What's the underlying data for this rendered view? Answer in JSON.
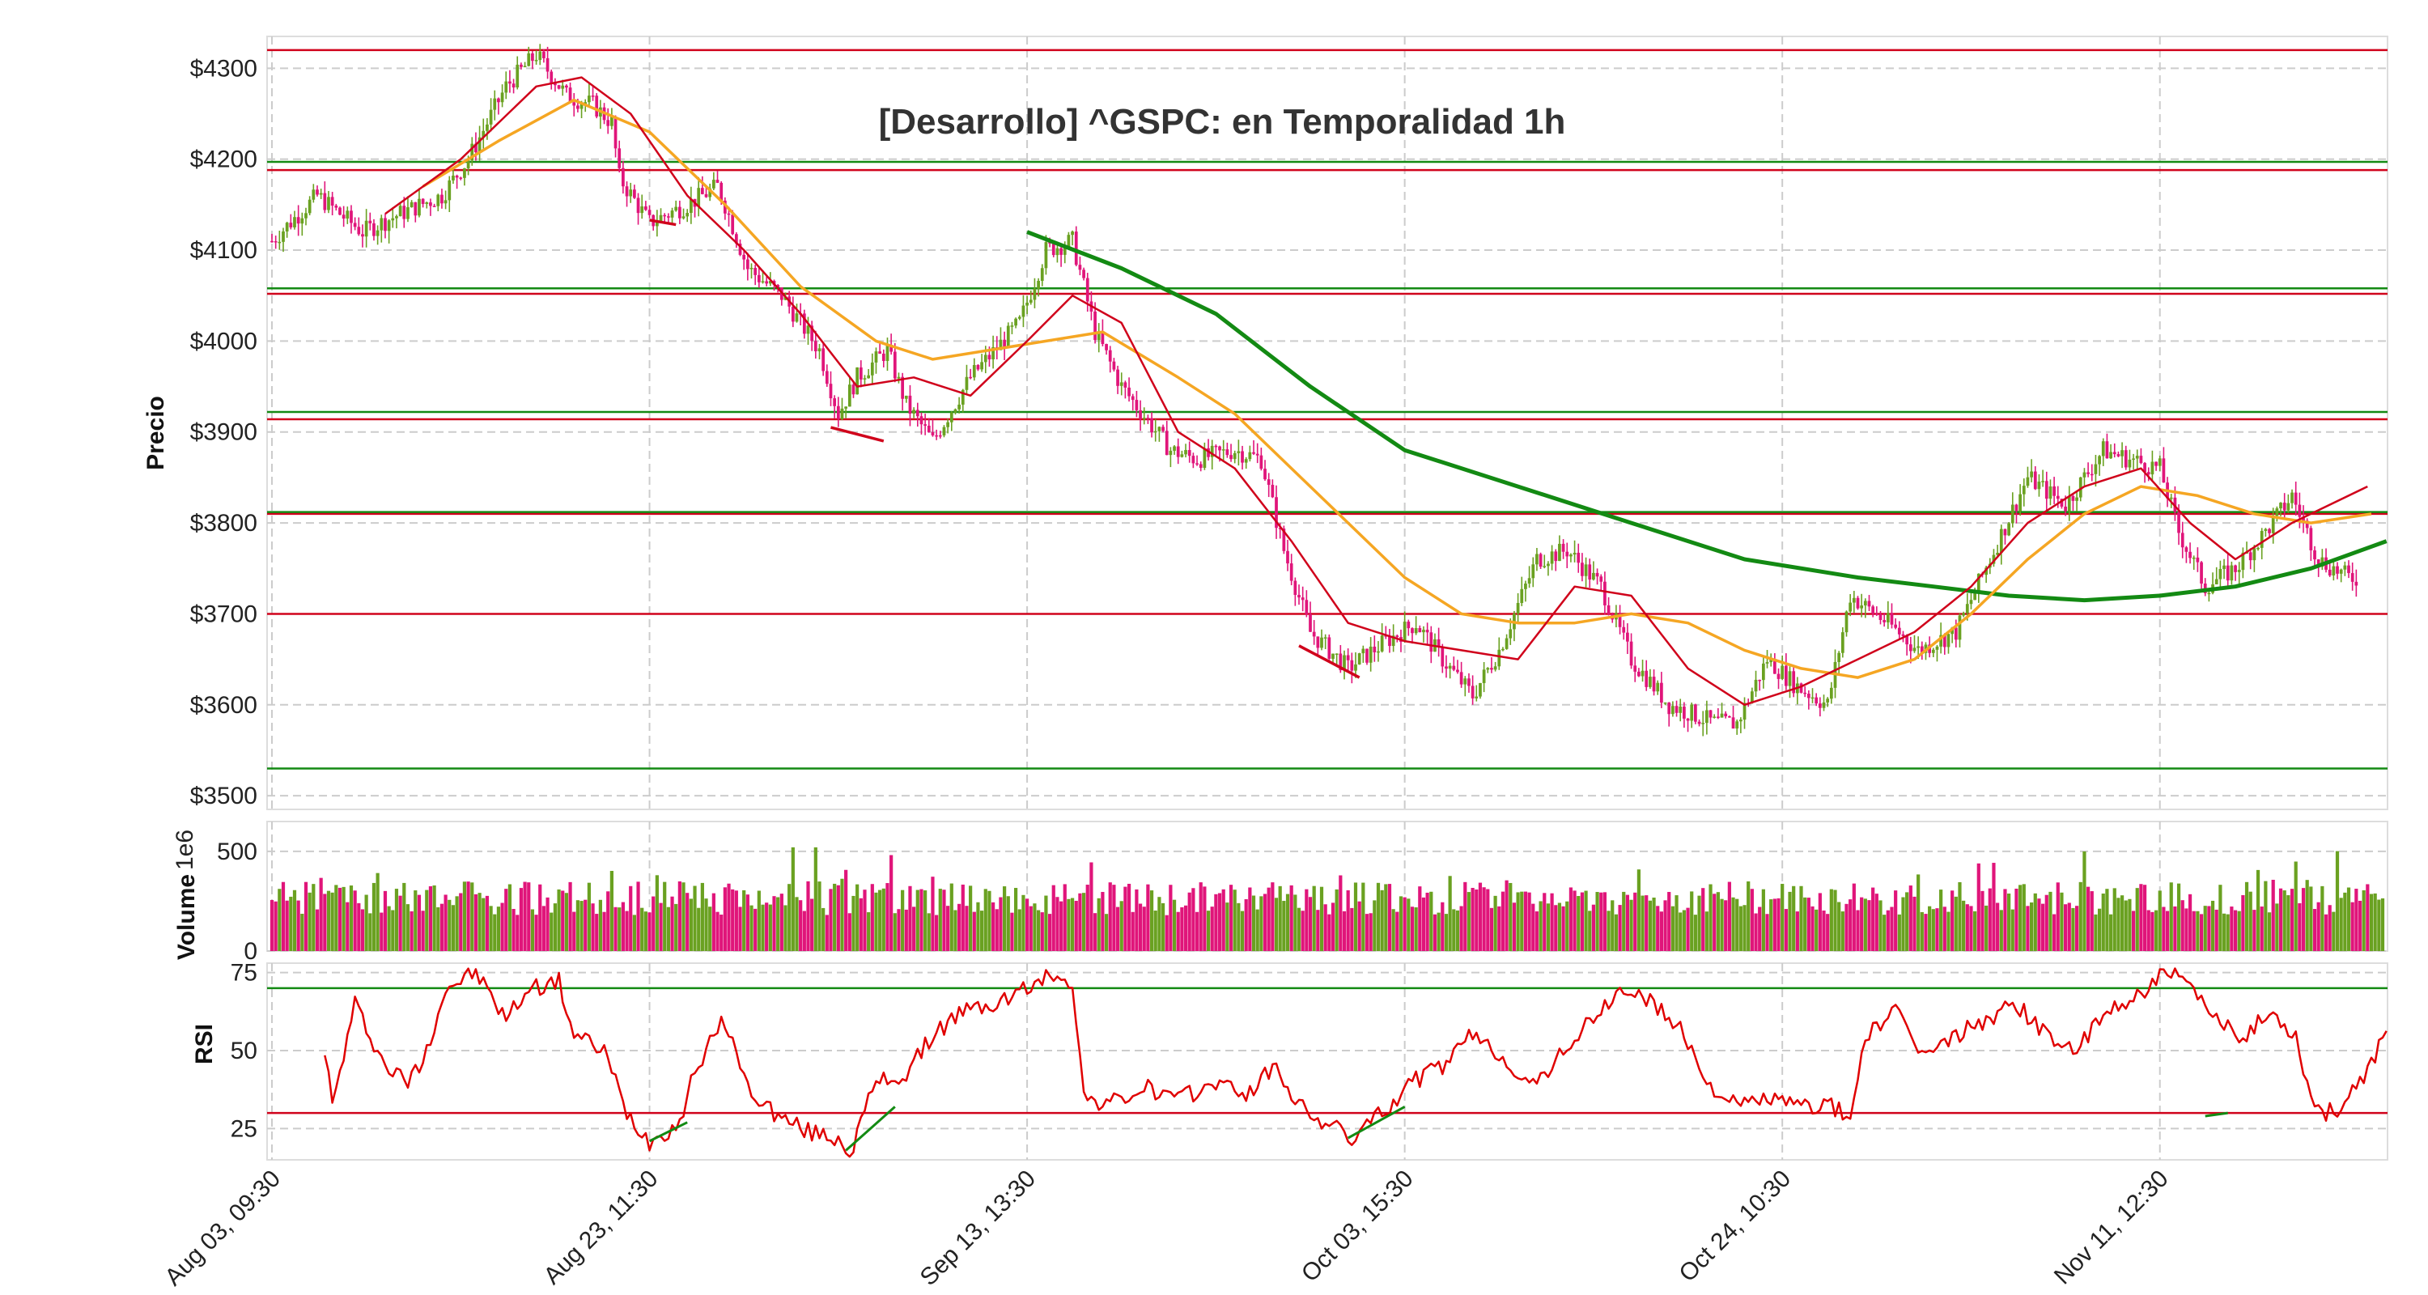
{
  "chart_data": {
    "type": "candlestick",
    "title": "[Desarrollo] ^GSPC: en Temporalidad 1h",
    "colors": {
      "up": "#6aa121",
      "down": "#e0157a",
      "ma_fast": "#d0021b",
      "ma_slow": "#f5a623",
      "ma_long": "#138a13",
      "resistance": "#d0021b",
      "support": "#138a13",
      "rsi": "#e00000",
      "grid": "#cccccc"
    },
    "x_tick_labels": [
      "Aug 03, 09:30",
      "Aug 23, 11:30",
      "Sep 13, 13:30",
      "Oct 03, 15:30",
      "Oct 24, 10:30",
      "Nov 11, 12:30"
    ],
    "n_bars": 560,
    "price_panel": {
      "ylabel": "Precio",
      "ylim": [
        3485,
        4335
      ],
      "tick_values": [
        3500,
        3600,
        3700,
        3800,
        3900,
        4000,
        4100,
        4200,
        4300
      ],
      "tick_labels": [
        "$3500",
        "$3600",
        "$3700",
        "$3800",
        "$3900",
        "$4000",
        "$4100",
        "$4200",
        "$4300"
      ],
      "close_path": [
        {
          "i": 0,
          "v": 4110
        },
        {
          "i": 12,
          "v": 4160
        },
        {
          "i": 24,
          "v": 4120
        },
        {
          "i": 34,
          "v": 4140
        },
        {
          "i": 45,
          "v": 4160
        },
        {
          "i": 52,
          "v": 4200
        },
        {
          "i": 62,
          "v": 4280
        },
        {
          "i": 70,
          "v": 4315
        },
        {
          "i": 78,
          "v": 4270
        },
        {
          "i": 85,
          "v": 4260
        },
        {
          "i": 90,
          "v": 4240
        },
        {
          "i": 92,
          "v": 4180
        },
        {
          "i": 100,
          "v": 4130
        },
        {
          "i": 110,
          "v": 4150
        },
        {
          "i": 118,
          "v": 4170
        },
        {
          "i": 120,
          "v": 4150
        },
        {
          "i": 126,
          "v": 4080
        },
        {
          "i": 135,
          "v": 4050
        },
        {
          "i": 145,
          "v": 3990
        },
        {
          "i": 150,
          "v": 3920
        },
        {
          "i": 155,
          "v": 3960
        },
        {
          "i": 163,
          "v": 3990
        },
        {
          "i": 168,
          "v": 3930
        },
        {
          "i": 175,
          "v": 3890
        },
        {
          "i": 185,
          "v": 3960
        },
        {
          "i": 198,
          "v": 4020
        },
        {
          "i": 205,
          "v": 4100
        },
        {
          "i": 212,
          "v": 4110
        },
        {
          "i": 218,
          "v": 4010
        },
        {
          "i": 225,
          "v": 3950
        },
        {
          "i": 238,
          "v": 3880
        },
        {
          "i": 245,
          "v": 3870
        },
        {
          "i": 255,
          "v": 3880
        },
        {
          "i": 262,
          "v": 3870
        },
        {
          "i": 268,
          "v": 3770
        },
        {
          "i": 275,
          "v": 3680
        },
        {
          "i": 285,
          "v": 3640
        },
        {
          "i": 295,
          "v": 3670
        },
        {
          "i": 303,
          "v": 3690
        },
        {
          "i": 310,
          "v": 3650
        },
        {
          "i": 318,
          "v": 3610
        },
        {
          "i": 325,
          "v": 3660
        },
        {
          "i": 335,
          "v": 3760
        },
        {
          "i": 343,
          "v": 3770
        },
        {
          "i": 352,
          "v": 3730
        },
        {
          "i": 360,
          "v": 3650
        },
        {
          "i": 370,
          "v": 3600
        },
        {
          "i": 382,
          "v": 3580
        },
        {
          "i": 388,
          "v": 3580
        },
        {
          "i": 396,
          "v": 3650
        },
        {
          "i": 404,
          "v": 3620
        },
        {
          "i": 412,
          "v": 3600
        },
        {
          "i": 418,
          "v": 3720
        },
        {
          "i": 428,
          "v": 3690
        },
        {
          "i": 436,
          "v": 3660
        },
        {
          "i": 446,
          "v": 3680
        },
        {
          "i": 455,
          "v": 3760
        },
        {
          "i": 465,
          "v": 3850
        },
        {
          "i": 475,
          "v": 3820
        },
        {
          "i": 485,
          "v": 3880
        },
        {
          "i": 492,
          "v": 3870
        },
        {
          "i": 500,
          "v": 3860
        },
        {
          "i": 505,
          "v": 3790
        },
        {
          "i": 512,
          "v": 3730
        },
        {
          "i": 520,
          "v": 3750
        },
        {
          "i": 528,
          "v": 3790
        },
        {
          "i": 535,
          "v": 3830
        },
        {
          "i": 542,
          "v": 3760
        },
        {
          "i": 550,
          "v": 3740
        }
      ],
      "resistance_lines": [
        4320,
        4188,
        4052,
        3914,
        3810,
        3700
      ],
      "support_lines": [
        4197,
        4058,
        3922,
        3812,
        3530
      ],
      "ma_fast": [
        {
          "i": 30,
          "v": 4140
        },
        {
          "i": 50,
          "v": 4200
        },
        {
          "i": 70,
          "v": 4280
        },
        {
          "i": 82,
          "v": 4290
        },
        {
          "i": 95,
          "v": 4250
        },
        {
          "i": 110,
          "v": 4160
        },
        {
          "i": 125,
          "v": 4100
        },
        {
          "i": 140,
          "v": 4030
        },
        {
          "i": 155,
          "v": 3950
        },
        {
          "i": 170,
          "v": 3960
        },
        {
          "i": 185,
          "v": 3940
        },
        {
          "i": 200,
          "v": 4000
        },
        {
          "i": 212,
          "v": 4050
        },
        {
          "i": 225,
          "v": 4020
        },
        {
          "i": 240,
          "v": 3900
        },
        {
          "i": 255,
          "v": 3860
        },
        {
          "i": 270,
          "v": 3780
        },
        {
          "i": 285,
          "v": 3690
        },
        {
          "i": 300,
          "v": 3670
        },
        {
          "i": 315,
          "v": 3660
        },
        {
          "i": 330,
          "v": 3650
        },
        {
          "i": 345,
          "v": 3730
        },
        {
          "i": 360,
          "v": 3720
        },
        {
          "i": 375,
          "v": 3640
        },
        {
          "i": 390,
          "v": 3600
        },
        {
          "i": 405,
          "v": 3620
        },
        {
          "i": 420,
          "v": 3650
        },
        {
          "i": 435,
          "v": 3680
        },
        {
          "i": 450,
          "v": 3730
        },
        {
          "i": 465,
          "v": 3800
        },
        {
          "i": 480,
          "v": 3840
        },
        {
          "i": 495,
          "v": 3860
        },
        {
          "i": 508,
          "v": 3800
        },
        {
          "i": 520,
          "v": 3760
        },
        {
          "i": 535,
          "v": 3800
        },
        {
          "i": 555,
          "v": 3840
        }
      ],
      "ma_slow": [
        {
          "i": 40,
          "v": 4170
        },
        {
          "i": 60,
          "v": 4220
        },
        {
          "i": 80,
          "v": 4265
        },
        {
          "i": 100,
          "v": 4230
        },
        {
          "i": 120,
          "v": 4150
        },
        {
          "i": 140,
          "v": 4060
        },
        {
          "i": 160,
          "v": 4000
        },
        {
          "i": 175,
          "v": 3980
        },
        {
          "i": 190,
          "v": 3990
        },
        {
          "i": 205,
          "v": 4000
        },
        {
          "i": 220,
          "v": 4010
        },
        {
          "i": 240,
          "v": 3960
        },
        {
          "i": 255,
          "v": 3920
        },
        {
          "i": 270,
          "v": 3860
        },
        {
          "i": 285,
          "v": 3800
        },
        {
          "i": 300,
          "v": 3740
        },
        {
          "i": 315,
          "v": 3700
        },
        {
          "i": 330,
          "v": 3690
        },
        {
          "i": 345,
          "v": 3690
        },
        {
          "i": 360,
          "v": 3700
        },
        {
          "i": 375,
          "v": 3690
        },
        {
          "i": 390,
          "v": 3660
        },
        {
          "i": 405,
          "v": 3640
        },
        {
          "i": 420,
          "v": 3630
        },
        {
          "i": 435,
          "v": 3650
        },
        {
          "i": 450,
          "v": 3700
        },
        {
          "i": 465,
          "v": 3760
        },
        {
          "i": 480,
          "v": 3810
        },
        {
          "i": 495,
          "v": 3840
        },
        {
          "i": 510,
          "v": 3830
        },
        {
          "i": 525,
          "v": 3810
        },
        {
          "i": 540,
          "v": 3800
        },
        {
          "i": 556,
          "v": 3810
        }
      ],
      "ma_long": [
        {
          "i": 200,
          "v": 4120
        },
        {
          "i": 225,
          "v": 4080
        },
        {
          "i": 250,
          "v": 4030
        },
        {
          "i": 275,
          "v": 3950
        },
        {
          "i": 300,
          "v": 3880
        },
        {
          "i": 330,
          "v": 3840
        },
        {
          "i": 360,
          "v": 3800
        },
        {
          "i": 390,
          "v": 3760
        },
        {
          "i": 420,
          "v": 3740
        },
        {
          "i": 440,
          "v": 3730
        },
        {
          "i": 460,
          "v": 3720
        },
        {
          "i": 480,
          "v": 3715
        },
        {
          "i": 500,
          "v": 3720
        },
        {
          "i": 520,
          "v": 3730
        },
        {
          "i": 540,
          "v": 3750
        },
        {
          "i": 560,
          "v": 3780
        }
      ],
      "divergence_segments_price": [
        {
          "i0": 100,
          "v0": 4133,
          "i1": 107,
          "v1": 4128,
          "color": "#d0021b"
        },
        {
          "i0": 148,
          "v0": 3905,
          "i1": 162,
          "v1": 3890,
          "color": "#d0021b"
        },
        {
          "i0": 272,
          "v0": 3665,
          "i1": 288,
          "v1": 3630,
          "color": "#d0021b"
        }
      ]
    },
    "volume_panel": {
      "ylabel": "Volume",
      "scale_label": "1e6",
      "ylim": [
        0,
        650
      ],
      "tick_values": [
        0,
        500
      ],
      "tick_labels": [
        "0",
        "500"
      ]
    },
    "rsi_panel": {
      "ylabel": "RSI",
      "ylim": [
        15,
        78
      ],
      "tick_values": [
        25,
        50,
        75
      ],
      "tick_labels": [
        "25",
        "50",
        "75"
      ],
      "overbought": 70,
      "oversold": 30,
      "rsi_path": [
        {
          "i": 14,
          "v": 51
        },
        {
          "i": 16,
          "v": 32
        },
        {
          "i": 22,
          "v": 65
        },
        {
          "i": 30,
          "v": 45
        },
        {
          "i": 36,
          "v": 40
        },
        {
          "i": 40,
          "v": 47
        },
        {
          "i": 46,
          "v": 70
        },
        {
          "i": 54,
          "v": 75
        },
        {
          "i": 62,
          "v": 60
        },
        {
          "i": 68,
          "v": 70
        },
        {
          "i": 76,
          "v": 72
        },
        {
          "i": 80,
          "v": 55
        },
        {
          "i": 88,
          "v": 50
        },
        {
          "i": 94,
          "v": 30
        },
        {
          "i": 100,
          "v": 21
        },
        {
          "i": 108,
          "v": 27
        },
        {
          "i": 112,
          "v": 44
        },
        {
          "i": 120,
          "v": 60
        },
        {
          "i": 126,
          "v": 38
        },
        {
          "i": 134,
          "v": 29
        },
        {
          "i": 142,
          "v": 24
        },
        {
          "i": 150,
          "v": 22
        },
        {
          "i": 153,
          "v": 17
        },
        {
          "i": 160,
          "v": 40
        },
        {
          "i": 168,
          "v": 42
        },
        {
          "i": 175,
          "v": 55
        },
        {
          "i": 182,
          "v": 62
        },
        {
          "i": 192,
          "v": 65
        },
        {
          "i": 200,
          "v": 70
        },
        {
          "i": 208,
          "v": 75
        },
        {
          "i": 212,
          "v": 72
        },
        {
          "i": 215,
          "v": 35
        },
        {
          "i": 222,
          "v": 33
        },
        {
          "i": 232,
          "v": 38
        },
        {
          "i": 240,
          "v": 34
        },
        {
          "i": 250,
          "v": 40
        },
        {
          "i": 258,
          "v": 36
        },
        {
          "i": 266,
          "v": 45
        },
        {
          "i": 272,
          "v": 32
        },
        {
          "i": 280,
          "v": 26
        },
        {
          "i": 286,
          "v": 22
        },
        {
          "i": 294,
          "v": 30
        },
        {
          "i": 302,
          "v": 40
        },
        {
          "i": 310,
          "v": 45
        },
        {
          "i": 318,
          "v": 55
        },
        {
          "i": 326,
          "v": 48
        },
        {
          "i": 334,
          "v": 38
        },
        {
          "i": 342,
          "v": 50
        },
        {
          "i": 350,
          "v": 60
        },
        {
          "i": 358,
          "v": 70
        },
        {
          "i": 366,
          "v": 65
        },
        {
          "i": 374,
          "v": 55
        },
        {
          "i": 380,
          "v": 40
        },
        {
          "i": 388,
          "v": 32
        },
        {
          "i": 396,
          "v": 35
        },
        {
          "i": 404,
          "v": 32
        },
        {
          "i": 412,
          "v": 33
        },
        {
          "i": 418,
          "v": 28
        },
        {
          "i": 422,
          "v": 55
        },
        {
          "i": 430,
          "v": 62
        },
        {
          "i": 438,
          "v": 48
        },
        {
          "i": 446,
          "v": 55
        },
        {
          "i": 454,
          "v": 60
        },
        {
          "i": 462,
          "v": 65
        },
        {
          "i": 470,
          "v": 55
        },
        {
          "i": 478,
          "v": 50
        },
        {
          "i": 486,
          "v": 62
        },
        {
          "i": 494,
          "v": 68
        },
        {
          "i": 502,
          "v": 75
        },
        {
          "i": 508,
          "v": 70
        },
        {
          "i": 514,
          "v": 60
        },
        {
          "i": 522,
          "v": 55
        },
        {
          "i": 530,
          "v": 62
        },
        {
          "i": 536,
          "v": 55
        },
        {
          "i": 540,
          "v": 35
        },
        {
          "i": 544,
          "v": 30
        },
        {
          "i": 548,
          "v": 32
        },
        {
          "i": 554,
          "v": 40
        },
        {
          "i": 560,
          "v": 58
        }
      ],
      "divergence_segments_rsi": [
        {
          "i0": 100,
          "v0": 21,
          "i1": 110,
          "v1": 27,
          "color": "#138a13"
        },
        {
          "i0": 152,
          "v0": 18,
          "i1": 165,
          "v1": 32,
          "color": "#138a13"
        },
        {
          "i0": 285,
          "v0": 22,
          "i1": 300,
          "v1": 32,
          "color": "#138a13"
        },
        {
          "i0": 512,
          "v0": 29,
          "i1": 518,
          "v1": 30,
          "color": "#138a13"
        }
      ]
    }
  }
}
